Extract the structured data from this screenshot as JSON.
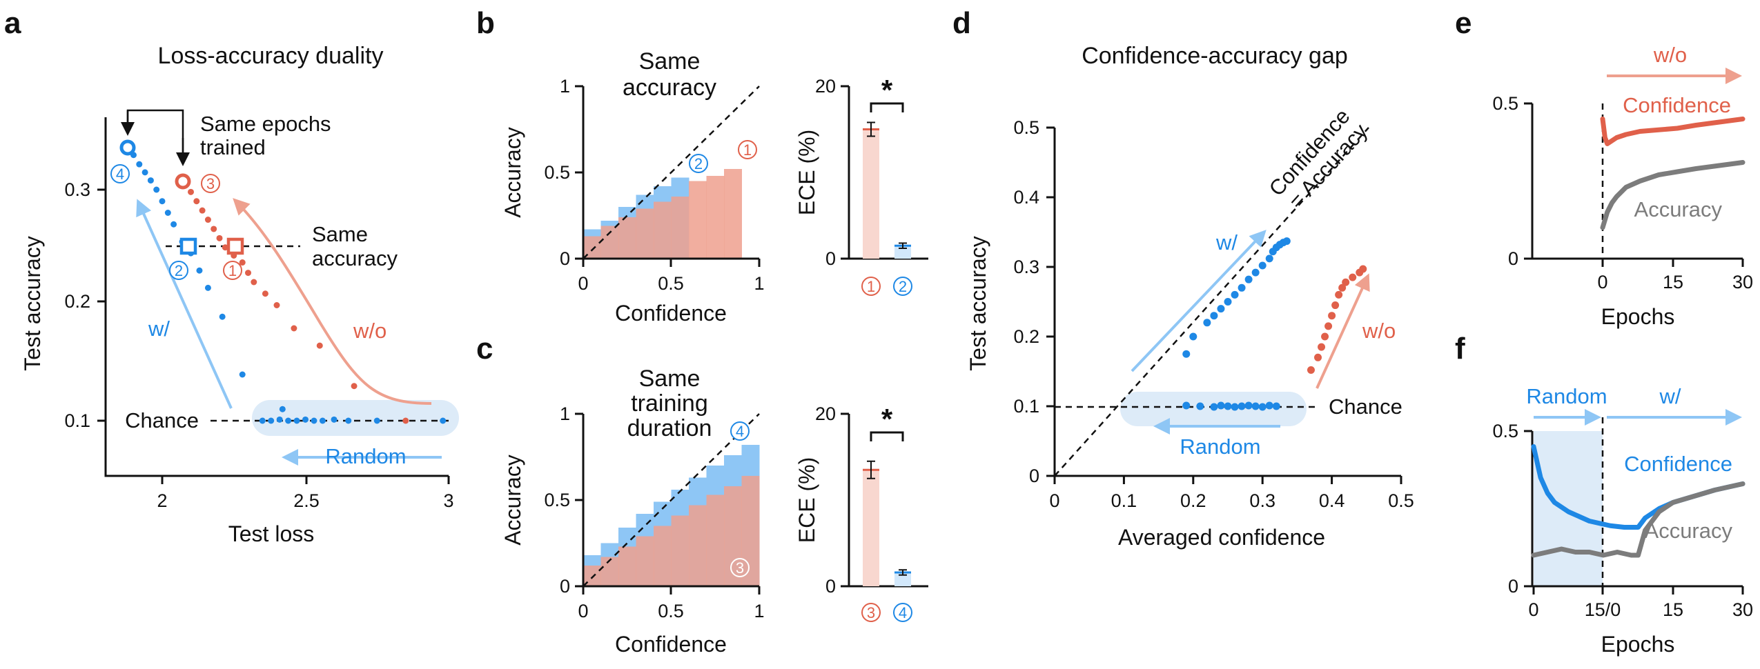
{
  "colors": {
    "blue": "#1e88e5",
    "red": "#e0604a",
    "light_blue": "#8ec6f5",
    "light_red": "#eea08e",
    "gray": "#7c7c7c",
    "band": "#ddebf8"
  },
  "chart_data": [
    {
      "panel": "a",
      "type": "scatter",
      "title": "Loss-accuracy duality",
      "xlabel": "Test loss",
      "ylabel": "Test accuracy",
      "xlim": [
        1.8,
        3.05
      ],
      "ylim": [
        0.05,
        0.36
      ],
      "xticks": [
        "2",
        "2.5",
        "3"
      ],
      "yticks": [
        "0.1",
        "0.2",
        "0.3"
      ],
      "series": [
        {
          "name": "w/",
          "points": [
            [
              1.88,
              0.338
            ],
            [
              1.9,
              0.33
            ],
            [
              1.92,
              0.322
            ],
            [
              1.94,
              0.315
            ],
            [
              1.96,
              0.308
            ],
            [
              1.98,
              0.3
            ],
            [
              2.0,
              0.29
            ],
            [
              2.02,
              0.28
            ],
            [
              2.04,
              0.27
            ],
            [
              2.07,
              0.255
            ],
            [
              2.1,
              0.245
            ],
            [
              2.13,
              0.23
            ],
            [
              2.16,
              0.215
            ],
            [
              2.21,
              0.19
            ],
            [
              2.28,
              0.14
            ],
            [
              2.42,
              0.11
            ]
          ]
        },
        {
          "name": "w/o",
          "points": [
            [
              2.08,
              0.305
            ],
            [
              2.1,
              0.298
            ],
            [
              2.12,
              0.29
            ],
            [
              2.14,
              0.282
            ],
            [
              2.16,
              0.274
            ],
            [
              2.18,
              0.266
            ],
            [
              2.2,
              0.258
            ],
            [
              2.22,
              0.25
            ],
            [
              2.25,
              0.243
            ],
            [
              2.28,
              0.237
            ],
            [
              2.3,
              0.228
            ],
            [
              2.32,
              0.22
            ],
            [
              2.36,
              0.21
            ],
            [
              2.4,
              0.2
            ],
            [
              2.46,
              0.18
            ],
            [
              2.55,
              0.165
            ],
            [
              2.67,
              0.13
            ],
            [
              2.85,
              0.1
            ]
          ]
        },
        {
          "name": "Random",
          "points": [
            [
              2.35,
              0.1
            ],
            [
              2.38,
              0.1
            ],
            [
              2.41,
              0.101
            ],
            [
              2.44,
              0.1
            ],
            [
              2.47,
              0.1
            ],
            [
              2.5,
              0.101
            ],
            [
              2.53,
              0.1
            ],
            [
              2.56,
              0.1
            ],
            [
              2.6,
              0.101
            ],
            [
              2.65,
              0.1
            ],
            [
              2.75,
              0.1
            ],
            [
              2.98,
              0.1
            ]
          ]
        }
      ],
      "annotations": {
        "same_epochs": "Same epochs",
        "trained": "trained",
        "same": "Same",
        "accuracy": "accuracy",
        "w": "w/",
        "wo": "w/o",
        "chance": "Chance",
        "random": "Random"
      },
      "markers": {
        "m4": "4",
        "m3": "3",
        "m2": "2",
        "m1": "1"
      }
    },
    {
      "panel": "b",
      "type": "bar",
      "title_line1": "Same",
      "title_line2": "accuracy",
      "xlabel": "Confidence",
      "ylabel": "Accuracy",
      "xlim": [
        0,
        1
      ],
      "ylim": [
        0,
        1
      ],
      "xticks": [
        "0",
        "0.5",
        "1"
      ],
      "yticks": [
        "0",
        "0.5",
        "1"
      ],
      "bins": [
        0.1,
        0.2,
        0.3,
        0.4,
        0.5,
        0.6,
        0.7,
        0.8,
        0.9,
        1.0
      ],
      "series": [
        {
          "name": "2",
          "values": [
            0.17,
            0.22,
            0.3,
            0.37,
            0.42,
            0.47,
            null,
            null,
            null,
            null
          ]
        },
        {
          "name": "1",
          "values": [
            0.13,
            0.19,
            0.24,
            0.29,
            0.33,
            0.36,
            0.45,
            0.48,
            0.52,
            null
          ]
        }
      ],
      "labels": {
        "m2": "2",
        "m1": "1"
      },
      "ece": {
        "ylabel": "ECE (%)",
        "ylim": [
          0,
          20
        ],
        "yticks": [
          "0",
          "20"
        ],
        "categories": [
          "1",
          "2"
        ],
        "values": [
          15,
          1.5
        ],
        "errors": [
          0.8,
          0.3
        ],
        "sig": "*"
      }
    },
    {
      "panel": "c",
      "type": "bar",
      "title_line1": "Same",
      "title_line2": "training",
      "title_line3": "duration",
      "xlabel": "Confidence",
      "ylabel": "Accuracy",
      "xlim": [
        0,
        1
      ],
      "ylim": [
        0,
        1
      ],
      "xticks": [
        "0",
        "0.5",
        "1"
      ],
      "yticks": [
        "0",
        "0.5",
        "1"
      ],
      "bins": [
        0.1,
        0.2,
        0.3,
        0.4,
        0.5,
        0.6,
        0.7,
        0.8,
        0.9,
        1.0
      ],
      "series": [
        {
          "name": "4",
          "values": [
            0.18,
            0.25,
            0.34,
            0.42,
            0.49,
            0.56,
            0.63,
            0.7,
            0.76,
            0.82
          ]
        },
        {
          "name": "3",
          "values": [
            0.12,
            0.17,
            0.23,
            0.29,
            0.35,
            0.41,
            0.47,
            0.53,
            0.58,
            0.64
          ]
        }
      ],
      "labels": {
        "m4": "4",
        "m3": "3"
      },
      "ece": {
        "ylabel": "ECE (%)",
        "ylim": [
          0,
          20
        ],
        "yticks": [
          "0",
          "20"
        ],
        "categories": [
          "3",
          "4"
        ],
        "values": [
          13.5,
          1.6
        ],
        "errors": [
          1.0,
          0.3
        ],
        "sig": "*"
      }
    },
    {
      "panel": "d",
      "type": "scatter",
      "title": "Confidence-accuracy gap",
      "xlabel": "Averaged confidence",
      "ylabel": "Test accuracy",
      "xlim": [
        0,
        0.5
      ],
      "ylim": [
        0,
        0.5
      ],
      "xticks": [
        "0",
        "0.1",
        "0.2",
        "0.3",
        "0.4",
        "0.5"
      ],
      "yticks": [
        "0",
        "0.1",
        "0.2",
        "0.3",
        "0.4",
        "0.5"
      ],
      "series": [
        {
          "name": "w/",
          "points": [
            [
              0.19,
              0.175
            ],
            [
              0.2,
              0.2
            ],
            [
              0.22,
              0.22
            ],
            [
              0.23,
              0.23
            ],
            [
              0.24,
              0.24
            ],
            [
              0.25,
              0.25
            ],
            [
              0.26,
              0.26
            ],
            [
              0.27,
              0.27
            ],
            [
              0.28,
              0.282
            ],
            [
              0.29,
              0.292
            ],
            [
              0.3,
              0.302
            ],
            [
              0.31,
              0.312
            ],
            [
              0.315,
              0.322
            ],
            [
              0.32,
              0.328
            ],
            [
              0.325,
              0.332
            ],
            [
              0.33,
              0.335
            ],
            [
              0.335,
              0.337
            ]
          ]
        },
        {
          "name": "w/o",
          "points": [
            [
              0.37,
              0.152
            ],
            [
              0.38,
              0.17
            ],
            [
              0.385,
              0.185
            ],
            [
              0.39,
              0.2
            ],
            [
              0.395,
              0.215
            ],
            [
              0.4,
              0.23
            ],
            [
              0.405,
              0.245
            ],
            [
              0.41,
              0.26
            ],
            [
              0.415,
              0.27
            ],
            [
              0.42,
              0.278
            ],
            [
              0.43,
              0.285
            ],
            [
              0.44,
              0.292
            ],
            [
              0.445,
              0.297
            ]
          ]
        },
        {
          "name": "Random",
          "points": [
            [
              0.19,
              0.101
            ],
            [
              0.21,
              0.1
            ],
            [
              0.23,
              0.099
            ],
            [
              0.24,
              0.101
            ],
            [
              0.25,
              0.1
            ],
            [
              0.26,
              0.099
            ],
            [
              0.27,
              0.1
            ],
            [
              0.28,
              0.101
            ],
            [
              0.29,
              0.1
            ],
            [
              0.3,
              0.099
            ],
            [
              0.31,
              0.101
            ],
            [
              0.32,
              0.1
            ]
          ]
        }
      ],
      "annotations": {
        "conf_line1": "Confidence",
        "conf_line2": "= Accuracy",
        "w": "w/",
        "wo": "w/o",
        "chance": "Chance",
        "random": "Random"
      }
    },
    {
      "panel": "e",
      "type": "line",
      "xlabel": "Epochs",
      "xlim": [
        -15,
        30
      ],
      "ylim": [
        0,
        0.5
      ],
      "xticks": [
        "0",
        "15",
        "30"
      ],
      "yticks": [
        "0",
        "0.5"
      ],
      "series": [
        {
          "name": "Confidence",
          "x": [
            0,
            0.5,
            1,
            2,
            3,
            5,
            8,
            12,
            16,
            20,
            25,
            30
          ],
          "values": [
            0.45,
            0.39,
            0.37,
            0.38,
            0.39,
            0.4,
            0.41,
            0.415,
            0.42,
            0.43,
            0.44,
            0.45
          ]
        },
        {
          "name": "Accuracy",
          "x": [
            0,
            1,
            2,
            3,
            5,
            8,
            12,
            16,
            20,
            25,
            30
          ],
          "values": [
            0.1,
            0.15,
            0.18,
            0.2,
            0.23,
            0.25,
            0.27,
            0.28,
            0.29,
            0.3,
            0.31
          ]
        }
      ],
      "annotations": {
        "wo": "w/o"
      }
    },
    {
      "panel": "f",
      "type": "line",
      "xlabel": "Epochs",
      "xlim": [
        0,
        30
      ],
      "ylim": [
        0,
        0.5
      ],
      "xticks": [
        "0",
        "15/0",
        "15",
        "30"
      ],
      "yticks": [
        "0",
        "0.5"
      ],
      "series": [
        {
          "name": "Confidence",
          "x": [
            0,
            1,
            2,
            3,
            5,
            8,
            11,
            13,
            15,
            16,
            18,
            20,
            23,
            26,
            30
          ],
          "values": [
            0.45,
            0.35,
            0.3,
            0.27,
            0.24,
            0.21,
            0.195,
            0.19,
            0.19,
            0.22,
            0.25,
            0.27,
            0.29,
            0.31,
            0.33
          ]
        },
        {
          "name": "Accuracy",
          "x": [
            0,
            2,
            4,
            6,
            8,
            10,
            12,
            14,
            15,
            16,
            18,
            20,
            23,
            26,
            30
          ],
          "values": [
            0.1,
            0.11,
            0.12,
            0.11,
            0.11,
            0.1,
            0.11,
            0.1,
            0.1,
            0.18,
            0.24,
            0.27,
            0.29,
            0.31,
            0.33
          ]
        }
      ],
      "annotations": {
        "random": "Random",
        "w": "w/"
      }
    }
  ]
}
